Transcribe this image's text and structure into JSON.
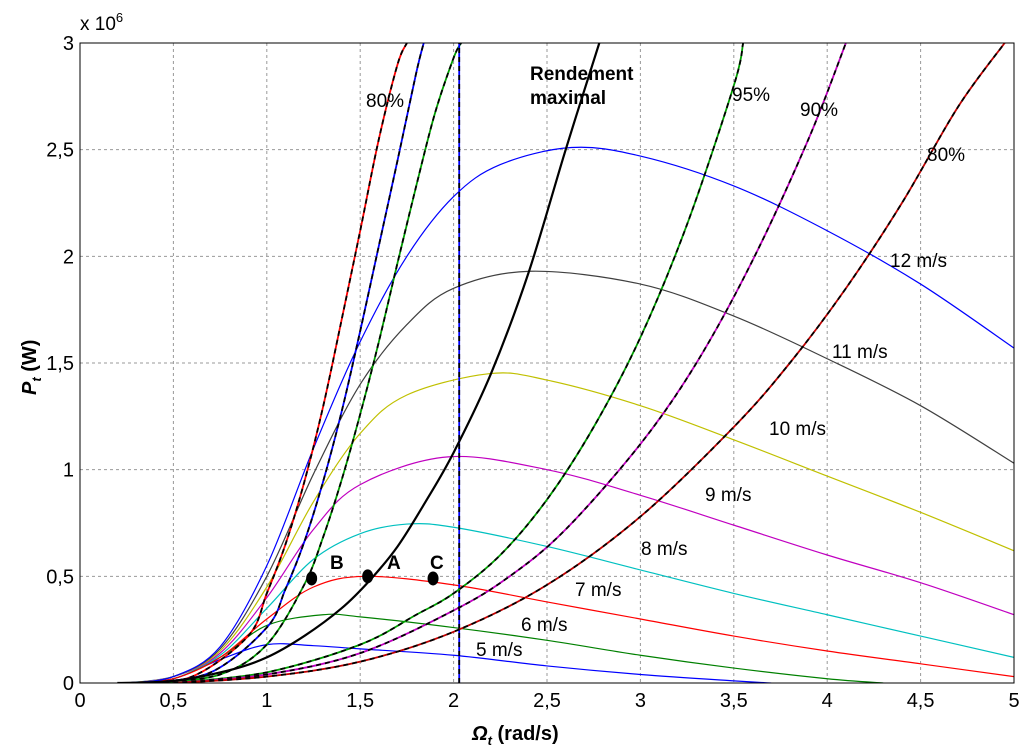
{
  "chart_data": {
    "type": "line",
    "xlabel": "Ωt (rad/s)",
    "ylabel": "Pt (W)",
    "multiplier": "x 10",
    "multiplier_exp": "6",
    "xlim": [
      0,
      5
    ],
    "ylim": [
      0,
      3
    ],
    "grid": true,
    "x_ticks": [
      "0",
      "0,5",
      "1",
      "1,5",
      "2",
      "2,5",
      "3",
      "3,5",
      "4",
      "4,5",
      "5"
    ],
    "y_ticks": [
      "0",
      "0,5",
      "1",
      "1,5",
      "2",
      "2,5",
      "3"
    ],
    "power_curves": [
      {
        "name": "5 m/s",
        "color": "#0000ff",
        "peak_x": 1.09,
        "peak_y": 0.18,
        "x": [
          0.25,
          0.5,
          0.75,
          1.0,
          1.25,
          1.5,
          2.0,
          2.5,
          3.0,
          3.5,
          3.7
        ],
        "y": [
          0.0,
          0.02,
          0.11,
          0.18,
          0.175,
          0.16,
          0.13,
          0.08,
          0.04,
          0.01,
          0.0
        ]
      },
      {
        "name": "6 m/s",
        "color": "#008000",
        "peak_x": 1.31,
        "peak_y": 0.32,
        "x": [
          0.25,
          0.5,
          0.75,
          1.0,
          1.3,
          1.5,
          2.0,
          2.5,
          3.0,
          3.5,
          4.0,
          4.3
        ],
        "y": [
          0.0,
          0.02,
          0.12,
          0.27,
          0.32,
          0.31,
          0.26,
          0.2,
          0.13,
          0.07,
          0.02,
          0.0
        ]
      },
      {
        "name": "7 m/s",
        "color": "#ff0000",
        "peak_x": 1.53,
        "peak_y": 0.5,
        "x": [
          0.25,
          0.5,
          0.75,
          1.0,
          1.25,
          1.53,
          2.0,
          2.5,
          3.0,
          3.5,
          4.0,
          4.5,
          5.0
        ],
        "y": [
          0.0,
          0.02,
          0.12,
          0.3,
          0.45,
          0.5,
          0.46,
          0.38,
          0.3,
          0.22,
          0.15,
          0.09,
          0.03
        ]
      },
      {
        "name": "8 m/s",
        "color": "#00c0c0",
        "peak_x": 1.75,
        "peak_y": 0.745,
        "x": [
          0.25,
          0.5,
          0.75,
          1.0,
          1.25,
          1.5,
          1.75,
          2.0,
          2.5,
          3.0,
          3.5,
          4.0,
          4.5,
          5.0
        ],
        "y": [
          0.0,
          0.03,
          0.13,
          0.35,
          0.58,
          0.7,
          0.745,
          0.73,
          0.64,
          0.53,
          0.42,
          0.32,
          0.22,
          0.12
        ]
      },
      {
        "name": "9 m/s",
        "color": "#c000c0",
        "peak_x": 1.97,
        "peak_y": 1.06,
        "x": [
          0.25,
          0.5,
          0.75,
          1.0,
          1.25,
          1.5,
          1.97,
          2.5,
          3.0,
          3.5,
          4.0,
          4.5,
          5.0
        ],
        "y": [
          0.0,
          0.03,
          0.14,
          0.4,
          0.72,
          0.93,
          1.06,
          1.0,
          0.88,
          0.74,
          0.6,
          0.47,
          0.32
        ]
      },
      {
        "name": "10 m/s",
        "color": "#c0c000",
        "peak_x": 2.19,
        "peak_y": 1.45,
        "x": [
          0.25,
          0.5,
          0.75,
          1.0,
          1.25,
          1.5,
          1.75,
          2.19,
          2.5,
          3.0,
          3.5,
          4.0,
          4.5,
          5.0
        ],
        "y": [
          0.0,
          0.03,
          0.15,
          0.45,
          0.85,
          1.17,
          1.35,
          1.45,
          1.42,
          1.3,
          1.14,
          0.97,
          0.8,
          0.62
        ]
      },
      {
        "name": "11 m/s",
        "color": "#404040",
        "peak_x": 2.41,
        "peak_y": 1.93,
        "x": [
          0.25,
          0.5,
          0.75,
          1.0,
          1.25,
          1.5,
          1.75,
          2.0,
          2.41,
          3.0,
          3.5,
          4.0,
          4.5,
          5.0
        ],
        "y": [
          0.0,
          0.03,
          0.16,
          0.5,
          0.98,
          1.4,
          1.68,
          1.85,
          1.93,
          1.87,
          1.72,
          1.52,
          1.3,
          1.03
        ]
      },
      {
        "name": "12 m/s",
        "color": "#0000ff",
        "peak_x": 2.63,
        "peak_y": 2.51,
        "x": [
          0.25,
          0.5,
          0.75,
          1.0,
          1.25,
          1.5,
          1.75,
          2.0,
          2.25,
          2.63,
          3.0,
          3.5,
          4.0,
          4.5,
          5.0
        ],
        "y": [
          0.0,
          0.03,
          0.17,
          0.55,
          1.1,
          1.6,
          2.0,
          2.28,
          2.43,
          2.51,
          2.47,
          2.33,
          2.12,
          1.87,
          1.57
        ]
      }
    ],
    "max_efficiency_curve": {
      "name": "Rendement maximal",
      "color": "#000000",
      "x": [
        0.2,
        0.5,
        0.8,
        1.0,
        1.2,
        1.4,
        1.55,
        1.7,
        1.85,
        2.0,
        2.2,
        2.4,
        2.6,
        2.78
      ],
      "y": [
        0.0,
        0.01,
        0.06,
        0.12,
        0.22,
        0.35,
        0.48,
        0.64,
        0.85,
        1.08,
        1.45,
        1.92,
        2.5,
        3.0
      ]
    },
    "efficiency_curves": [
      {
        "label": "80%",
        "color": "#ff0000",
        "x": [
          0.3,
          0.6,
          0.9,
          1.0,
          1.1,
          1.2,
          1.3,
          1.4,
          1.5,
          1.6,
          1.7,
          1.75
        ],
        "y": [
          0.0,
          0.03,
          0.22,
          0.42,
          0.65,
          0.94,
          1.29,
          1.7,
          2.12,
          2.55,
          2.9,
          3.0
        ]
      },
      {
        "label": "",
        "color": "#0000ff",
        "x": [
          0.35,
          0.7,
          1.0,
          1.1,
          1.2,
          1.3,
          1.4,
          1.5,
          1.6,
          1.7,
          1.8,
          1.84
        ],
        "y": [
          0.0,
          0.05,
          0.26,
          0.44,
          0.66,
          0.94,
          1.27,
          1.65,
          2.05,
          2.45,
          2.86,
          3.0
        ]
      },
      {
        "label": "",
        "color": "#00a000",
        "x": [
          0.4,
          0.75,
          1.0,
          1.2,
          1.3,
          1.4,
          1.5,
          1.6,
          1.7,
          1.8,
          1.9,
          2.0,
          2.04
        ],
        "y": [
          0.0,
          0.04,
          0.18,
          0.46,
          0.68,
          0.95,
          1.26,
          1.6,
          1.97,
          2.33,
          2.67,
          2.93,
          3.0
        ]
      },
      {
        "label": "",
        "color": "#0000ff",
        "x": [
          2.03,
          2.03
        ],
        "y": [
          0.0,
          3.0
        ]
      },
      {
        "label": "95%",
        "color": "#00a000",
        "x": [
          0.5,
          1.0,
          1.5,
          1.8,
          2.0,
          2.25,
          2.5,
          2.75,
          3.0,
          3.25,
          3.5,
          3.55
        ],
        "y": [
          0.0,
          0.05,
          0.18,
          0.32,
          0.42,
          0.6,
          0.86,
          1.2,
          1.62,
          2.15,
          2.8,
          3.0
        ]
      },
      {
        "label": "90%",
        "color": "#c000c0",
        "x": [
          0.5,
          1.0,
          1.5,
          2.0,
          2.3,
          2.6,
          3.0,
          3.3,
          3.6,
          3.9,
          4.1
        ],
        "y": [
          0.0,
          0.04,
          0.14,
          0.34,
          0.5,
          0.72,
          1.12,
          1.5,
          1.98,
          2.55,
          3.0
        ]
      },
      {
        "label": "80%",
        "color": "#c00000",
        "x": [
          0.5,
          1.0,
          1.5,
          2.0,
          2.5,
          3.0,
          3.5,
          3.8,
          4.1,
          4.4,
          4.7,
          4.95
        ],
        "y": [
          0.0,
          0.03,
          0.1,
          0.24,
          0.46,
          0.78,
          1.2,
          1.5,
          1.85,
          2.25,
          2.7,
          3.0
        ]
      }
    ],
    "points": [
      {
        "label": "B",
        "x": 1.24,
        "y": 0.49
      },
      {
        "label": "A",
        "x": 1.54,
        "y": 0.5
      },
      {
        "label": "C",
        "x": 1.89,
        "y": 0.49
      }
    ]
  }
}
